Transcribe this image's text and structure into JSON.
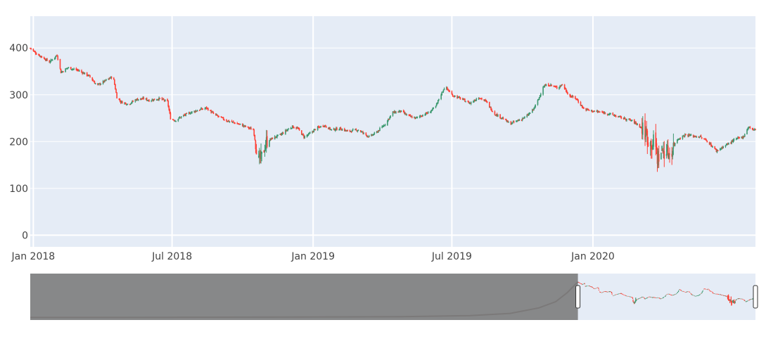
{
  "chart_data": {
    "type": "candlestick",
    "title": "",
    "xlabel": "",
    "ylabel": "",
    "ylim": [
      -25,
      468
    ],
    "xrange": [
      "2017-12-28",
      "2020-07-31"
    ],
    "y_ticks": [
      0,
      100,
      200,
      300,
      400
    ],
    "x_ticks": [
      {
        "date": "2018-01-01",
        "label": "Jan 2018"
      },
      {
        "date": "2018-07-01",
        "label": "Jul 2018"
      },
      {
        "date": "2019-01-01",
        "label": "Jan 2019"
      },
      {
        "date": "2019-07-01",
        "label": "Jul 2019"
      },
      {
        "date": "2020-01-01",
        "label": "Jan 2020"
      }
    ],
    "grid": true,
    "legend": "none",
    "colors": {
      "increasing": "#3D9970",
      "decreasing": "#FF4136",
      "plot_bg": "#E5ECF6",
      "grid": "#FFFFFF",
      "rangeslider_mask": "#7F7F7F"
    },
    "close_path": [
      [
        "2017-12-28",
        400
      ],
      [
        "2018-01-05",
        388
      ],
      [
        "2018-01-15",
        378
      ],
      [
        "2018-01-22",
        370
      ],
      [
        "2018-02-01",
        385
      ],
      [
        "2018-02-06",
        348
      ],
      [
        "2018-02-15",
        358
      ],
      [
        "2018-03-01",
        352
      ],
      [
        "2018-03-15",
        340
      ],
      [
        "2018-03-25",
        320
      ],
      [
        "2018-04-05",
        330
      ],
      [
        "2018-04-15",
        340
      ],
      [
        "2018-04-20",
        295
      ],
      [
        "2018-04-25",
        285
      ],
      [
        "2018-05-05",
        280
      ],
      [
        "2018-05-15",
        290
      ],
      [
        "2018-05-25",
        292
      ],
      [
        "2018-06-01",
        288
      ],
      [
        "2018-06-15",
        292
      ],
      [
        "2018-06-25",
        285
      ],
      [
        "2018-06-29",
        250
      ],
      [
        "2018-07-05",
        245
      ],
      [
        "2018-07-15",
        255
      ],
      [
        "2018-07-25",
        262
      ],
      [
        "2018-08-05",
        268
      ],
      [
        "2018-08-15",
        272
      ],
      [
        "2018-08-25",
        258
      ],
      [
        "2018-09-10",
        245
      ],
      [
        "2018-09-25",
        238
      ],
      [
        "2018-10-05",
        232
      ],
      [
        "2018-10-15",
        225
      ],
      [
        "2018-10-22",
        158
      ],
      [
        "2018-10-26",
        168
      ],
      [
        "2018-11-01",
        200
      ],
      [
        "2018-11-10",
        208
      ],
      [
        "2018-11-20",
        215
      ],
      [
        "2018-11-28",
        225
      ],
      [
        "2018-12-05",
        232
      ],
      [
        "2018-12-12",
        228
      ],
      [
        "2018-12-20",
        210
      ],
      [
        "2018-12-26",
        215
      ],
      [
        "2019-01-05",
        228
      ],
      [
        "2019-01-15",
        235
      ],
      [
        "2019-01-25",
        225
      ],
      [
        "2019-02-05",
        228
      ],
      [
        "2019-02-15",
        222
      ],
      [
        "2019-03-01",
        225
      ],
      [
        "2019-03-15",
        210
      ],
      [
        "2019-03-25",
        220
      ],
      [
        "2019-04-05",
        238
      ],
      [
        "2019-04-15",
        262
      ],
      [
        "2019-04-25",
        265
      ],
      [
        "2019-05-05",
        255
      ],
      [
        "2019-05-15",
        250
      ],
      [
        "2019-05-25",
        258
      ],
      [
        "2019-06-01",
        262
      ],
      [
        "2019-06-10",
        275
      ],
      [
        "2019-06-15",
        295
      ],
      [
        "2019-06-22",
        318
      ],
      [
        "2019-07-01",
        300
      ],
      [
        "2019-07-15",
        290
      ],
      [
        "2019-07-25",
        282
      ],
      [
        "2019-08-05",
        295
      ],
      [
        "2019-08-15",
        285
      ],
      [
        "2019-08-25",
        260
      ],
      [
        "2019-09-05",
        250
      ],
      [
        "2019-09-15",
        238
      ],
      [
        "2019-09-25",
        245
      ],
      [
        "2019-10-05",
        252
      ],
      [
        "2019-10-15",
        268
      ],
      [
        "2019-10-22",
        290
      ],
      [
        "2019-10-28",
        318
      ],
      [
        "2019-11-05",
        322
      ],
      [
        "2019-11-15",
        315
      ],
      [
        "2019-11-22",
        322
      ],
      [
        "2019-12-01",
        298
      ],
      [
        "2019-12-10",
        292
      ],
      [
        "2019-12-20",
        270
      ],
      [
        "2020-01-01",
        265
      ],
      [
        "2020-01-15",
        262
      ],
      [
        "2020-01-25",
        258
      ],
      [
        "2020-02-05",
        252
      ],
      [
        "2020-02-20",
        245
      ],
      [
        "2020-03-01",
        235
      ],
      [
        "2020-03-10",
        218
      ],
      [
        "2020-03-15",
        195
      ],
      [
        "2020-03-22",
        200
      ],
      [
        "2020-03-25",
        165
      ],
      [
        "2020-04-01",
        182
      ],
      [
        "2020-04-10",
        175
      ],
      [
        "2020-04-20",
        205
      ],
      [
        "2020-05-01",
        215
      ],
      [
        "2020-05-10",
        212
      ],
      [
        "2020-05-20",
        210
      ],
      [
        "2020-05-30",
        200
      ],
      [
        "2020-06-10",
        180
      ],
      [
        "2020-06-20",
        190
      ],
      [
        "2020-07-05",
        205
      ],
      [
        "2020-07-15",
        210
      ],
      [
        "2020-07-22",
        232
      ],
      [
        "2020-07-28",
        225
      ]
    ],
    "volatile_windows": [
      {
        "from": "2018-10-18",
        "to": "2018-11-02",
        "range": 35
      },
      {
        "from": "2020-03-05",
        "to": "2020-04-15",
        "range": 45
      }
    ],
    "rangeslider": {
      "visible": true,
      "full_range": [
        "2010-01-01",
        "2020-07-31"
      ],
      "selected_range": [
        "2017-12-28",
        "2020-07-31"
      ],
      "overview_path": [
        [
          "2010-01-01",
          5
        ],
        [
          "2012-01-01",
          6
        ],
        [
          "2014-01-01",
          9
        ],
        [
          "2015-06-01",
          14
        ],
        [
          "2016-06-01",
          25
        ],
        [
          "2017-01-01",
          50
        ],
        [
          "2017-06-01",
          110
        ],
        [
          "2017-09-01",
          180
        ],
        [
          "2017-11-01",
          280
        ],
        [
          "2017-12-28",
          400
        ]
      ]
    }
  }
}
